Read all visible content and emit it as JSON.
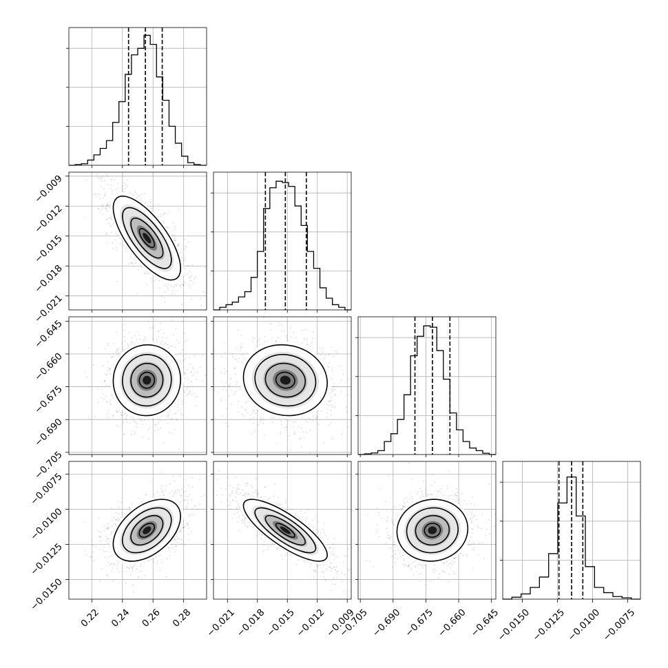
{
  "chart_data": {
    "type": "corner",
    "grid": true,
    "parameters": [
      {
        "quantiles": [
          0.244,
          0.255,
          0.266
        ],
        "tick_labels": [
          "0.22",
          "0.24",
          "0.26",
          "0.28"
        ],
        "tick_values": [
          0.22,
          0.24,
          0.26,
          0.28
        ],
        "range": [
          0.205,
          0.295
        ],
        "histogram": [
          0.0,
          0.005,
          0.012,
          0.04,
          0.08,
          0.13,
          0.19,
          0.33,
          0.49,
          0.7,
          0.85,
          0.9,
          1.0,
          0.93,
          0.68,
          0.5,
          0.3,
          0.17,
          0.07,
          0.02,
          0.005,
          0.0
        ]
      },
      {
        "quantiles": [
          -0.0172,
          -0.0152,
          -0.0131
        ],
        "tick_labels": [
          "−0.021",
          "−0.018",
          "−0.015",
          "−0.012",
          "−0.009"
        ],
        "tick_values": [
          -0.021,
          -0.018,
          -0.015,
          -0.012,
          -0.009
        ],
        "range": [
          -0.0224,
          -0.0086
        ],
        "histogram": [
          0.0,
          0.02,
          0.04,
          0.06,
          0.1,
          0.14,
          0.25,
          0.45,
          0.78,
          0.94,
          0.99,
          0.98,
          0.95,
          0.8,
          0.65,
          0.45,
          0.32,
          0.17,
          0.09,
          0.04,
          0.02,
          0.0
        ]
      },
      {
        "quantiles": [
          -0.68,
          -0.672,
          -0.664
        ],
        "tick_labels": [
          "−0.705",
          "−0.690",
          "−0.675",
          "−0.660",
          "−0.645"
        ],
        "tick_values": [
          -0.705,
          -0.69,
          -0.675,
          -0.66,
          -0.645
        ],
        "range": [
          -0.706,
          -0.643
        ],
        "histogram": [
          0.0,
          0.005,
          0.012,
          0.03,
          0.1,
          0.16,
          0.27,
          0.46,
          0.76,
          0.91,
          0.99,
          0.98,
          0.8,
          0.58,
          0.32,
          0.19,
          0.1,
          0.05,
          0.03,
          0.01,
          0.0
        ]
      },
      {
        "quantiles": [
          -0.0124,
          -0.0115,
          -0.0107
        ],
        "tick_labels": [
          "−0.0150",
          "−0.0125",
          "−0.0100",
          "−0.0075"
        ],
        "tick_values": [
          -0.015,
          -0.0125,
          -0.01,
          -0.0075
        ],
        "range": [
          -0.0164,
          -0.0066
        ],
        "histogram": [
          0.0,
          0.015,
          0.04,
          0.09,
          0.17,
          0.35,
          0.74,
          0.94,
          0.64,
          0.25,
          0.09,
          0.05,
          0.02,
          0.01,
          0.0
        ]
      }
    ],
    "y_tick_labels": [
      null,
      [
        "−0.009",
        "−0.012",
        "−0.015",
        "−0.018",
        "−0.021"
      ],
      [
        "−0.645",
        "−0.660",
        "−0.675",
        "−0.690",
        "−0.705"
      ],
      [
        "−0.0075",
        "−0.0100",
        "−0.0125",
        "−0.0150"
      ]
    ],
    "pairs": [
      {
        "x": 0,
        "y": 1,
        "center": [
          0.256,
          -0.0152
        ],
        "spread": [
          0.011,
          0.0021
        ],
        "correlation": -0.72
      },
      {
        "x": 0,
        "y": 2,
        "center": [
          0.256,
          -0.672
        ],
        "spread": [
          0.011,
          0.0081
        ],
        "correlation": 0.02
      },
      {
        "x": 1,
        "y": 2,
        "center": [
          -0.0152,
          -0.672
        ],
        "spread": [
          0.0021,
          0.0081
        ],
        "correlation": -0.08
      },
      {
        "x": 0,
        "y": 3,
        "center": [
          0.256,
          -0.0115
        ],
        "spread": [
          0.011,
          0.0011
        ],
        "correlation": 0.45
      },
      {
        "x": 1,
        "y": 3,
        "center": [
          -0.0152,
          -0.0115
        ],
        "spread": [
          0.0021,
          0.0011
        ],
        "correlation": -0.8
      },
      {
        "x": 2,
        "y": 3,
        "center": [
          -0.672,
          -0.0115
        ],
        "spread": [
          0.0081,
          0.0011
        ],
        "correlation": 0.05
      }
    ]
  }
}
